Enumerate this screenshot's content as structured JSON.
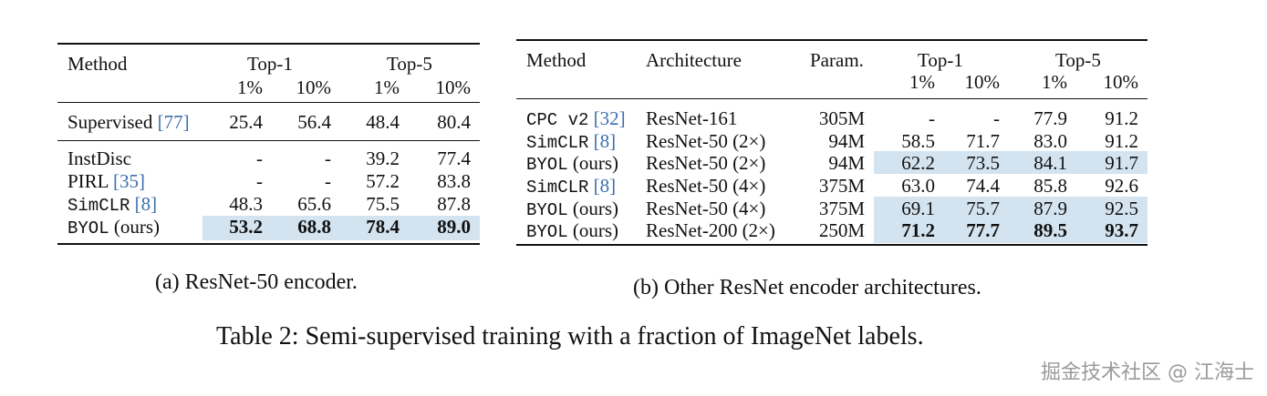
{
  "table_a": {
    "header": {
      "method": "Method",
      "top1": "Top-1",
      "top5": "Top-5",
      "sub": [
        "1%",
        "10%",
        "1%",
        "10%"
      ]
    },
    "rows": [
      {
        "name": "Supervised",
        "ref": "[77]",
        "vals": [
          "25.4",
          "56.4",
          "48.4",
          "80.4"
        ]
      },
      {
        "name": "InstDisc",
        "ref": "",
        "vals": [
          "-",
          "-",
          "39.2",
          "77.4"
        ]
      },
      {
        "name": "PIRL",
        "ref": "[35]",
        "vals": [
          "-",
          "-",
          "57.2",
          "83.8"
        ]
      },
      {
        "name": "SimCLR",
        "ref": "[8]",
        "vals": [
          "48.3",
          "65.6",
          "75.5",
          "87.8"
        ]
      },
      {
        "name": "BYOL",
        "suffix": "(ours)",
        "vals": [
          "53.2",
          "68.8",
          "78.4",
          "89.0"
        ]
      }
    ],
    "caption": "(a) ResNet-50 encoder."
  },
  "table_b": {
    "header": {
      "method": "Method",
      "architecture": "Architecture",
      "param": "Param.",
      "top1": "Top-1",
      "top5": "Top-5",
      "sub": [
        "1%",
        "10%",
        "1%",
        "10%"
      ]
    },
    "rows": [
      {
        "name": "CPC v2",
        "ref": "[32]",
        "arch": "ResNet-161",
        "param": "305M",
        "vals": [
          "-",
          "-",
          "77.9",
          "91.2"
        ]
      },
      {
        "name": "SimCLR",
        "ref": "[8]",
        "arch": "ResNet-50 (2×)",
        "param": "94M",
        "vals": [
          "58.5",
          "71.7",
          "83.0",
          "91.2"
        ]
      },
      {
        "name": "BYOL",
        "suffix": "(ours)",
        "arch": "ResNet-50 (2×)",
        "param": "94M",
        "vals": [
          "62.2",
          "73.5",
          "84.1",
          "91.7"
        ]
      },
      {
        "name": "SimCLR",
        "ref": "[8]",
        "arch": "ResNet-50 (4×)",
        "param": "375M",
        "vals": [
          "63.0",
          "74.4",
          "85.8",
          "92.6"
        ]
      },
      {
        "name": "BYOL",
        "suffix": "(ours)",
        "arch": "ResNet-50 (4×)",
        "param": "375M",
        "vals": [
          "69.1",
          "75.7",
          "87.9",
          "92.5"
        ]
      },
      {
        "name": "BYOL",
        "suffix": "(ours)",
        "arch": "ResNet-200 (2×)",
        "param": "250M",
        "vals": [
          "71.2",
          "77.7",
          "89.5",
          "93.7"
        ]
      }
    ],
    "caption": "(b) Other ResNet encoder architectures."
  },
  "main_caption": "Table 2: Semi-supervised training with a fraction of ImageNet labels.",
  "watermark": "掘金技术社区 @ 江海士",
  "colors": {
    "highlight": "#d3e3ef",
    "link": "#3b6fb0"
  }
}
